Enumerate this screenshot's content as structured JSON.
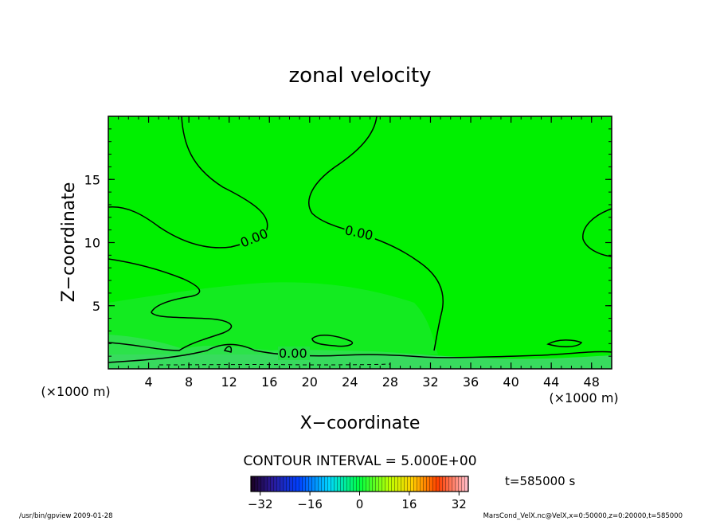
{
  "chart_data": {
    "type": "heatmap",
    "title": "zonal velocity",
    "xlabel": "X−coordinate",
    "ylabel": "Z−coordinate",
    "x_unit": "(×1000 m)",
    "y_unit": "(×1000 m)",
    "xlim": [
      0,
      50
    ],
    "ylim": [
      0,
      20
    ],
    "x_ticks": [
      "4",
      "8",
      "12",
      "16",
      "20",
      "24",
      "28",
      "32",
      "36",
      "40",
      "44",
      "48"
    ],
    "y_ticks": [
      "5",
      "10",
      "15"
    ],
    "contour_interval": "CONTOUR INTERVAL = 5.000E+00",
    "contour_labels": [
      "0.00",
      "0.00",
      "0.00"
    ],
    "colorbar": {
      "min": -35,
      "max": 35,
      "ticks": [
        "−32",
        "−16",
        "0",
        "16",
        "32"
      ]
    },
    "time_label": "t=585000 s",
    "footer_left": "/usr/bin/gpview   2009-01-28",
    "footer_right": "MarsCond_VelX.nc@VelX,x=0:50000,z=0:20000,t=585000",
    "colors": {
      "field": "#00f000",
      "near_surface": "#44dd66",
      "contour": "#000000"
    }
  }
}
